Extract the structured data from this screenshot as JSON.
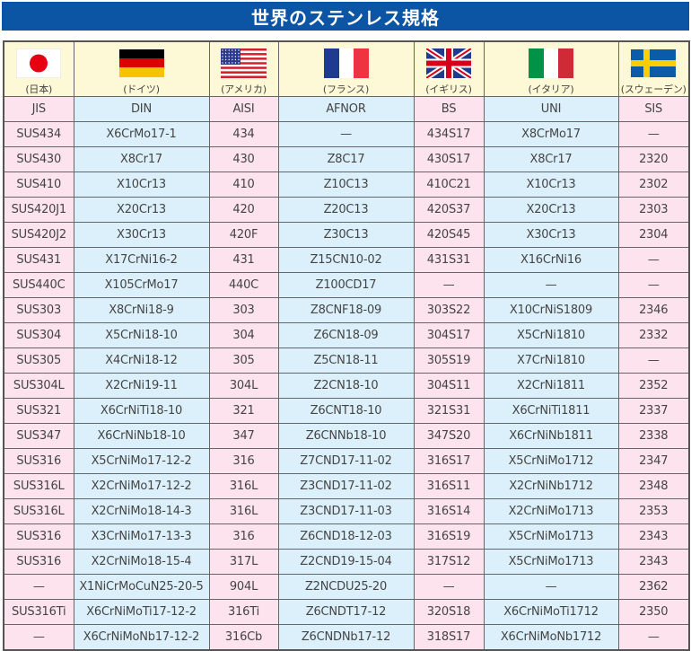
{
  "title": "世界のステンレス規格",
  "countries": [
    {
      "name": "(日本)",
      "flag": "japan-flag-icon"
    },
    {
      "name": "(ドイツ)",
      "flag": "germany-flag-icon"
    },
    {
      "name": "(アメリカ)",
      "flag": "usa-flag-icon"
    },
    {
      "name": "(フランス)",
      "flag": "france-flag-icon"
    },
    {
      "name": "(イギリス)",
      "flag": "uk-flag-icon"
    },
    {
      "name": "(イタリア)",
      "flag": "italy-flag-icon"
    },
    {
      "name": "(スウェーデン)",
      "flag": "sweden-flag-icon"
    }
  ],
  "standards": [
    "JIS",
    "DIN",
    "AISI",
    "AFNOR",
    "BS",
    "UNI",
    "SIS"
  ],
  "rows": [
    [
      "SUS434",
      "X6CrMo17-1",
      "434",
      "—",
      "434S17",
      "X8CrMo17",
      "—"
    ],
    [
      "SUS430",
      "X8Cr17",
      "430",
      "Z8C17",
      "430S17",
      "X8Cr17",
      "2320"
    ],
    [
      "SUS410",
      "X10Cr13",
      "410",
      "Z10C13",
      "410C21",
      "X10Cr13",
      "2302"
    ],
    [
      "SUS420J1",
      "X20Cr13",
      "420",
      "Z20C13",
      "420S37",
      "X20Cr13",
      "2303"
    ],
    [
      "SUS420J2",
      "X30Cr13",
      "420F",
      "Z30C13",
      "420S45",
      "X30Cr13",
      "2304"
    ],
    [
      "SUS431",
      "X17CrNi16-2",
      "431",
      "Z15CN10-02",
      "431S31",
      "X16CrNi16",
      "—"
    ],
    [
      "SUS440C",
      "X105CrMo17",
      "440C",
      "Z100CD17",
      "—",
      "—",
      "—"
    ],
    [
      "SUS303",
      "X8CrNi18-9",
      "303",
      "Z8CNF18-09",
      "303S22",
      "X10CrNiS1809",
      "2346"
    ],
    [
      "SUS304",
      "X5CrNi18-10",
      "304",
      "Z6CN18-09",
      "304S17",
      "X5CrNi1810",
      "2332"
    ],
    [
      "SUS305",
      "X4CrNi18-12",
      "305",
      "Z5CN18-11",
      "305S19",
      "X7CrNi1810",
      "—"
    ],
    [
      "SUS304L",
      "X2CrNi19-11",
      "304L",
      "Z2CN18-10",
      "304S11",
      "X2CrNi1811",
      "2352"
    ],
    [
      "SUS321",
      "X6CrNiTi18-10",
      "321",
      "Z6CNT18-10",
      "321S31",
      "X6CrNiTi1811",
      "2337"
    ],
    [
      "SUS347",
      "X6CrNiNb18-10",
      "347",
      "Z6CNNb18-10",
      "347S20",
      "X6CrNiNb1811",
      "2338"
    ],
    [
      "SUS316",
      "X5CrNiMo17-12-2",
      "316",
      "Z7CND17-11-02",
      "316S17",
      "X5CrNiMo1712",
      "2347"
    ],
    [
      "SUS316L",
      "X2CrNiMo17-12-2",
      "316L",
      "Z3CND17-11-02",
      "316S11",
      "X2CrNiNb1712",
      "2348"
    ],
    [
      "SUS316L",
      "X2CrNiMo18-14-3",
      "316L",
      "Z3CND17-11-03",
      "316S14",
      "X2CrNiMo1713",
      "2353"
    ],
    [
      "SUS316",
      "X3CrNiMo17-13-3",
      "316",
      "Z6CND18-12-03",
      "316S19",
      "X5CrNiMo1713",
      "2343"
    ],
    [
      "SUS316",
      "X2CrNiMo18-15-4",
      "317L",
      "Z2CND19-15-04",
      "317S12",
      "X5CrNiMo1713",
      "2343"
    ],
    [
      "—",
      "X1NiCrMoCuN25-20-5",
      "904L",
      "Z2NCDU25-20",
      "—",
      "—",
      "2362"
    ],
    [
      "SUS316Ti",
      "X6CrNiMoTi17-12-2",
      "316Ti",
      "Z6CNDT17-12",
      "320S18",
      "X6CrNiMoTi1712",
      "2350"
    ],
    [
      "—",
      "X6CrNiMoNb17-12-2",
      "316Cb",
      "Z6CNDNb17-12",
      "318S17",
      "X6CrNiMoNb1712",
      "—"
    ]
  ],
  "colors": {
    "title_bar": "#0c55a5",
    "pink_column": "#fce3ee",
    "blue_column": "#dcf0fb",
    "flag_row": "#fdf8d6"
  }
}
